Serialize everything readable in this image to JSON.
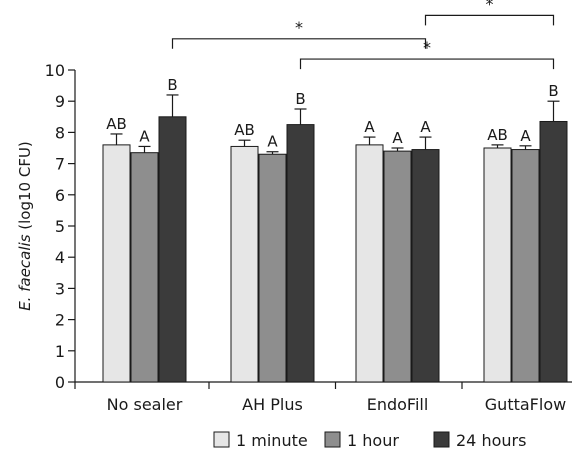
{
  "chart_data": {
    "type": "bar",
    "title": "",
    "xlabel": "",
    "ylabel": "E. faecalis (log10 CFU)",
    "ylabel_italic": "E. faecalis",
    "ylabel_rest": " (log10 CFU)",
    "ylim": [
      0,
      10
    ],
    "yticks": [
      "0",
      "1",
      "2",
      "3",
      "4",
      "5",
      "6",
      "7",
      "8",
      "9",
      "10"
    ],
    "categories": [
      "No sealer",
      "AH Plus",
      "EndoFill",
      "GuttaFlow"
    ],
    "series": [
      {
        "name": "1 minute",
        "color": "#e6e6e6",
        "values": [
          7.6,
          7.55,
          7.6,
          7.5
        ],
        "errors": [
          0.35,
          0.2,
          0.25,
          0.1
        ],
        "letters": [
          "AB",
          "AB",
          "A",
          "AB"
        ]
      },
      {
        "name": "1 hour",
        "color": "#8e8e8e",
        "values": [
          7.35,
          7.3,
          7.4,
          7.45
        ],
        "errors": [
          0.2,
          0.08,
          0.1,
          0.12
        ],
        "letters": [
          "A",
          "A",
          "A",
          "A"
        ]
      },
      {
        "name": "24 hours",
        "color": "#3b3b3b",
        "values": [
          8.5,
          8.25,
          7.45,
          8.35
        ],
        "errors": [
          0.7,
          0.5,
          0.4,
          0.65
        ],
        "letters": [
          "B",
          "B",
          "A",
          "B"
        ]
      }
    ],
    "significance": [
      {
        "from_category": 0,
        "to_category": 2,
        "y": 11.0,
        "label": "*"
      },
      {
        "from_category": 1,
        "to_category": 3,
        "y": 10.35,
        "label": "*"
      },
      {
        "from_category": 2,
        "to_category": 3,
        "y": 11.75,
        "label": "*"
      }
    ],
    "legend_position": "bottom",
    "grid": false
  }
}
